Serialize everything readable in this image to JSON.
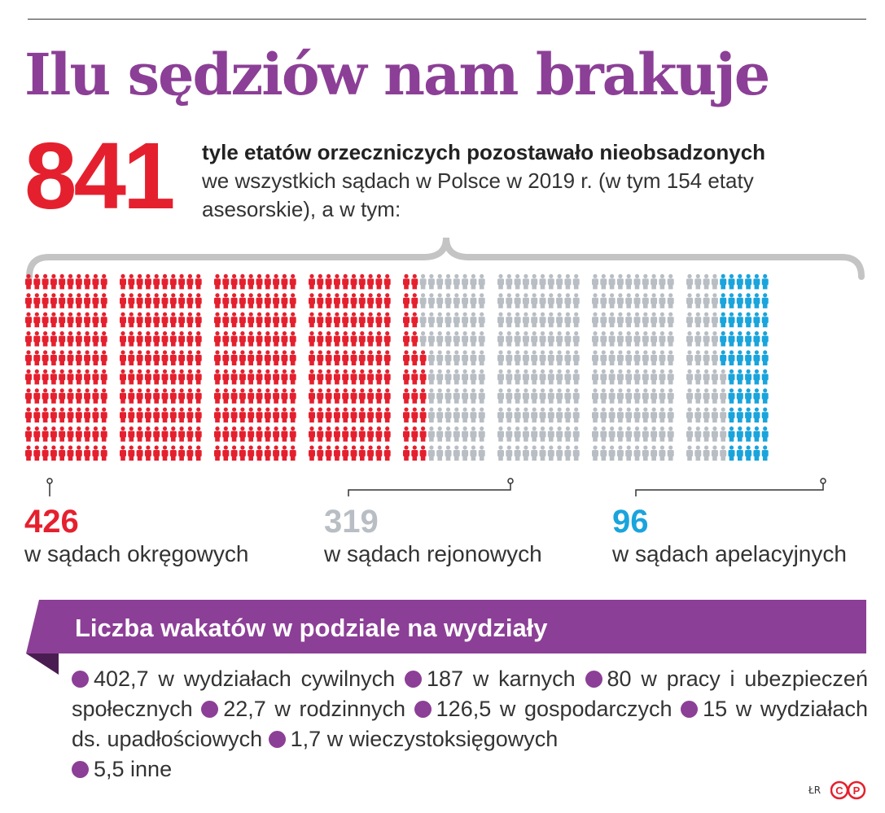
{
  "title": "Ilu sędziów nam brakuje",
  "headline": {
    "number": "841",
    "text_bold": "tyle etatów orzeczniczych pozostawało nieobsadzonych",
    "text_rest": "we wszystkich sądach w Polsce w 2019 r.  (w tym 154 etaty asesorskie), a w tym:"
  },
  "groups": [
    {
      "value": "426",
      "label": "w sądach okręgowych"
    },
    {
      "value": "319",
      "label": "w sądach rejonowych"
    },
    {
      "value": "96",
      "label": "w sądach apelacyjnych"
    }
  ],
  "breakdown": {
    "title": "Liczba wakatów w podziale na wydziały",
    "items": [
      "402,7 w wydziałach cywilnych",
      "187 w karnych",
      "80 w pracy i ubezpieczeń społecznych",
      "22,7 w rodzinnych",
      "126,5 w gospodarczych",
      "15 w wydziałach ds. upadłościowych",
      "1,7 w wieczystoksięgowych",
      "5,5 inne"
    ]
  },
  "credit": "ŁR",
  "logo_text": "CP",
  "colors": {
    "okregowe": "#e5202e",
    "rejonowe": "#b8bec4",
    "apelacyjne": "#1aa4dc",
    "accent": "#8c3f96"
  },
  "chart_data": {
    "type": "pictogram",
    "total": 841,
    "series": [
      {
        "name": "w sądach okręgowych",
        "value": 426
      },
      {
        "name": "w sądach rejonowych",
        "value": 319
      },
      {
        "name": "w sądach apelacyjnych",
        "value": 96
      }
    ]
  }
}
